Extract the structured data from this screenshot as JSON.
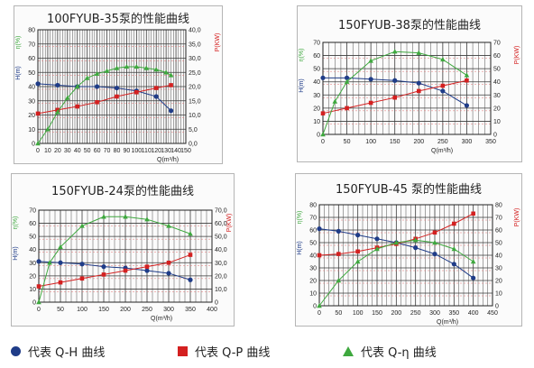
{
  "colors": {
    "h": "#1f3c88",
    "p": "#d42020",
    "eta": "#3ea83e",
    "grid": "#3a3a3a",
    "red_grid": "#e07070"
  },
  "legend": {
    "h_label": "代表 Q-H 曲线",
    "p_label": "代表 Q-P 曲线",
    "eta_label": "代表 Q-η 曲线",
    "h_icon": "blue-circle",
    "p_icon": "red-square",
    "eta_icon": "green-triangle"
  },
  "chart_data": [
    {
      "type": "line",
      "title": "100FYUB-35泵的性能曲线",
      "xlabel": "Q(m³/h)",
      "ylabel_eta": "η(%)",
      "ylabel_h": "H(m)",
      "ylabel_p": "P(KW)",
      "xlim": [
        0,
        150
      ],
      "x_ticks": [
        "0",
        "10",
        "20",
        "30",
        "40",
        "50",
        "60",
        "70",
        "80",
        "90",
        "100",
        "110",
        "120",
        "130",
        "140",
        "150"
      ],
      "ylim_left": [
        0,
        80
      ],
      "y_ticks_left": [
        "0",
        "10",
        "20",
        "30",
        "40",
        "50",
        "60",
        "70",
        "80"
      ],
      "ylim_right": [
        0,
        40
      ],
      "y_ticks_right": [
        "0,0",
        "5,0",
        "10,0",
        "15,0",
        "20,0",
        "25,0",
        "30,0",
        "35,0",
        "40,0"
      ],
      "series": [
        {
          "key": "h",
          "axis": "left",
          "x": [
            0,
            20,
            40,
            60,
            80,
            100,
            120,
            135
          ],
          "values": [
            42,
            41,
            40,
            40,
            39,
            37,
            33,
            23
          ]
        },
        {
          "key": "p",
          "axis": "right",
          "x": [
            0,
            20,
            40,
            60,
            80,
            100,
            120,
            135
          ],
          "values": [
            10.5,
            11.8,
            13,
            14.5,
            16.5,
            18,
            19.5,
            20.5
          ]
        },
        {
          "key": "eta",
          "axis": "left",
          "x": [
            0,
            10,
            20,
            30,
            40,
            50,
            60,
            70,
            80,
            90,
            100,
            110,
            120,
            130,
            135
          ],
          "values": [
            0,
            10,
            22,
            32,
            40,
            46,
            49,
            51,
            53,
            54,
            54,
            53,
            52,
            50,
            48
          ]
        }
      ]
    },
    {
      "type": "line",
      "title": "150FYUB-38泵的性能曲线",
      "xlabel": "Q(m³/h)",
      "ylabel_eta": "η(%)",
      "ylabel_h": "H(m)",
      "ylabel_p": "P(KW)",
      "xlim": [
        0,
        350
      ],
      "x_ticks": [
        "0",
        "50",
        "100",
        "150",
        "200",
        "250",
        "300",
        "350"
      ],
      "ylim_left": [
        0,
        70
      ],
      "y_ticks_left": [
        "0",
        "10",
        "20",
        "30",
        "40",
        "50",
        "60",
        "70"
      ],
      "ylim_right": [
        0,
        70
      ],
      "y_ticks_right": [
        "0",
        "10",
        "20",
        "30",
        "40",
        "50",
        "60",
        "70"
      ],
      "series": [
        {
          "key": "h",
          "axis": "left",
          "x": [
            0,
            50,
            100,
            150,
            200,
            250,
            300
          ],
          "values": [
            43,
            43,
            42,
            41,
            39,
            33,
            22
          ]
        },
        {
          "key": "p",
          "axis": "right",
          "x": [
            0,
            50,
            100,
            150,
            200,
            250,
            300
          ],
          "values": [
            16,
            20,
            24,
            28,
            33,
            37,
            41
          ]
        },
        {
          "key": "eta",
          "axis": "left",
          "x": [
            0,
            25,
            50,
            100,
            150,
            200,
            250,
            300
          ],
          "values": [
            0,
            25,
            40,
            56,
            63,
            62,
            57,
            45
          ]
        }
      ]
    },
    {
      "type": "line",
      "title": "150FYUB-24泵的性能曲线",
      "xlabel": "Q(m³/h)",
      "ylabel_eta": "η(%)",
      "ylabel_h": "H(m)",
      "ylabel_p": "P(KW)",
      "xlim": [
        0,
        400
      ],
      "x_ticks": [
        "0",
        "50",
        "100",
        "150",
        "200",
        "250",
        "300",
        "350",
        "400"
      ],
      "ylim_left": [
        0,
        70
      ],
      "y_ticks_left": [
        "0",
        "10",
        "20",
        "30",
        "40",
        "50",
        "60",
        "70"
      ],
      "ylim_right": [
        0,
        70
      ],
      "y_ticks_right": [
        "0",
        "10,0",
        "20,0",
        "30,0",
        "40,0",
        "50,0",
        "60,0",
        "70,0"
      ],
      "series": [
        {
          "key": "h",
          "axis": "left",
          "x": [
            0,
            50,
            100,
            150,
            200,
            250,
            300,
            350
          ],
          "values": [
            31,
            30,
            29,
            27,
            26,
            24,
            22,
            17
          ]
        },
        {
          "key": "p",
          "axis": "right",
          "x": [
            0,
            50,
            100,
            150,
            200,
            250,
            300,
            350
          ],
          "values": [
            12,
            15,
            18,
            21,
            24,
            27,
            30,
            36
          ]
        },
        {
          "key": "eta",
          "axis": "left",
          "x": [
            0,
            25,
            50,
            100,
            150,
            200,
            250,
            300,
            350
          ],
          "values": [
            0,
            30,
            42,
            58,
            65,
            65,
            63,
            58,
            52
          ]
        }
      ]
    },
    {
      "type": "line",
      "title": "150FYUB-45 泵的性能曲线",
      "xlabel": "Q(m³/h)",
      "ylabel_eta": "η(%)",
      "ylabel_h": "H(m)",
      "ylabel_p": "P(KW)",
      "xlim": [
        0,
        450
      ],
      "x_ticks": [
        "0",
        "50",
        "100",
        "150",
        "200",
        "250",
        "300",
        "350",
        "400",
        "450"
      ],
      "ylim_left": [
        0,
        80
      ],
      "y_ticks_left": [
        "0",
        "10",
        "20",
        "30",
        "40",
        "50",
        "60",
        "70",
        "80"
      ],
      "ylim_right": [
        0,
        80
      ],
      "y_ticks_right": [
        "0",
        "10",
        "20",
        "30",
        "40",
        "50",
        "60",
        "70",
        "80"
      ],
      "series": [
        {
          "key": "h",
          "axis": "left",
          "x": [
            0,
            50,
            100,
            150,
            200,
            250,
            300,
            350,
            400
          ],
          "values": [
            61,
            59,
            56,
            53,
            50,
            46,
            41,
            33,
            22
          ]
        },
        {
          "key": "p",
          "axis": "right",
          "x": [
            0,
            50,
            100,
            150,
            200,
            250,
            300,
            350,
            400
          ],
          "values": [
            40,
            41,
            43,
            46,
            49,
            53,
            58,
            65,
            73
          ]
        },
        {
          "key": "eta",
          "axis": "left",
          "x": [
            0,
            50,
            100,
            150,
            200,
            250,
            300,
            350,
            400
          ],
          "values": [
            0,
            20,
            35,
            45,
            50,
            52,
            50,
            45,
            35
          ]
        }
      ]
    }
  ]
}
